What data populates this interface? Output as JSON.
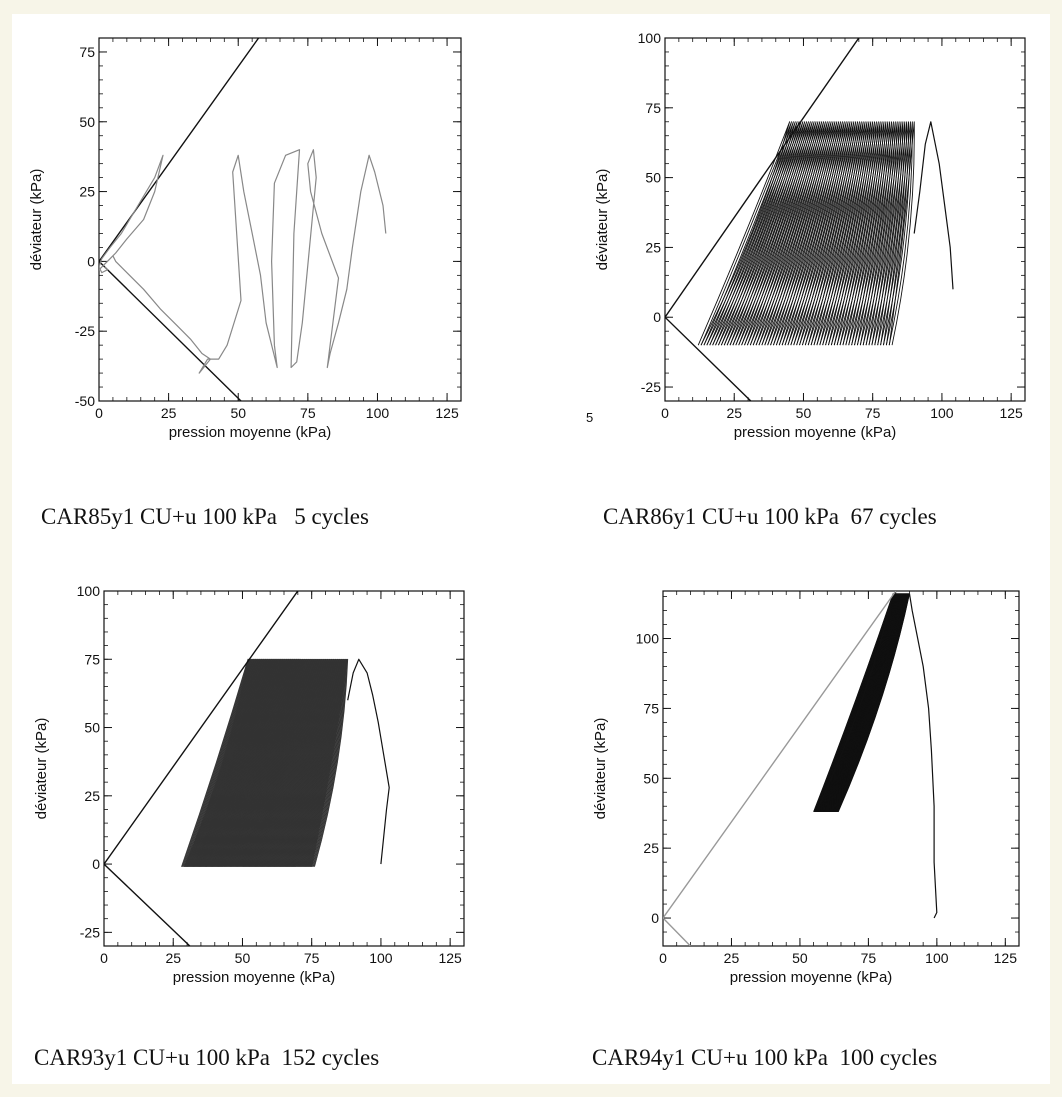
{
  "figure": {
    "stray_mark": "5",
    "background": "#f7f5e8"
  },
  "chart_data": [
    {
      "type": "line",
      "panel": "a",
      "caption": "CAR85y1 CU+u 100 kPa   5 cycles",
      "xlabel": "pression moyenne (kPa)",
      "ylabel": "déviateur (kPa)",
      "xlim": [
        0,
        130
      ],
      "ylim": [
        -50,
        80
      ],
      "xticks": [
        0,
        25,
        50,
        75,
        100,
        125
      ],
      "yticks": [
        -50,
        -25,
        0,
        25,
        50,
        75
      ],
      "series": [
        {
          "role": "failure-line",
          "color": "#111111",
          "x": [
            0,
            57.3
          ],
          "y": [
            0,
            80
          ]
        },
        {
          "role": "failure-line",
          "color": "#111111",
          "x": [
            0,
            51
          ],
          "y": [
            0,
            -50
          ]
        },
        {
          "role": "stress-path",
          "color": "#888888",
          "x": [
            103,
            102,
            99,
            97,
            94,
            91,
            89,
            86,
            83,
            82,
            86,
            80,
            76,
            75,
            77,
            78,
            73,
            71,
            69,
            70,
            72,
            67,
            63,
            62,
            63,
            64,
            60,
            58,
            55,
            52,
            50,
            48,
            51,
            46,
            43,
            39,
            36,
            40,
            37,
            33,
            28,
            22,
            16,
            10,
            6,
            5,
            3,
            1,
            0,
            2,
            6,
            10,
            16,
            20,
            23,
            20,
            14,
            8,
            4,
            1,
            0,
            1,
            3,
            2
          ],
          "y": [
            10,
            20,
            32,
            38,
            25,
            5,
            -10,
            -22,
            -33,
            -38,
            -6,
            10,
            25,
            35,
            40,
            30,
            -22,
            -36,
            -38,
            10,
            40,
            38,
            28,
            0,
            -30,
            -38,
            -22,
            -5,
            10,
            25,
            38,
            32,
            -14,
            -30,
            -35,
            -35,
            -40,
            -35,
            -33,
            -28,
            -23,
            -17,
            -10,
            -4,
            0,
            2,
            0,
            -2,
            -3,
            -1,
            3,
            8,
            15,
            25,
            38,
            30,
            20,
            10,
            5,
            1,
            -2,
            -4,
            -3,
            -2
          ]
        }
      ]
    },
    {
      "type": "line",
      "panel": "b",
      "caption": "CAR86y1 CU+u 100 kPa  67 cycles",
      "xlabel": "pression moyenne (kPa)",
      "ylabel": "déviateur (kPa)",
      "xlim": [
        0,
        130
      ],
      "ylim": [
        -30,
        100
      ],
      "xticks": [
        0,
        25,
        50,
        75,
        100,
        125
      ],
      "yticks": [
        -25,
        0,
        25,
        50,
        75,
        100
      ],
      "loops": {
        "count": 67,
        "q_max": 70,
        "q_min": -10,
        "p_start_top": 90,
        "p_end_top": 45,
        "p_start_bottom": 81,
        "p_end_bottom": 12,
        "color": "#111111"
      },
      "series": [
        {
          "role": "failure-line",
          "color": "#111111",
          "x": [
            0,
            70
          ],
          "y": [
            0,
            100
          ]
        },
        {
          "role": "failure-line",
          "color": "#111111",
          "x": [
            0,
            31
          ],
          "y": [
            0,
            -30
          ]
        },
        {
          "role": "first-loading",
          "color": "#111111",
          "x": [
            104,
            103,
            101,
            99,
            97,
            96,
            94,
            92,
            90
          ],
          "y": [
            10,
            25,
            40,
            55,
            65,
            70,
            62,
            45,
            30
          ]
        }
      ]
    },
    {
      "type": "line",
      "panel": "c",
      "caption": "CAR93y1 CU+u 100 kPa  152 cycles",
      "xlabel": "pression moyenne (kPa)",
      "ylabel": "déviateur (kPa)",
      "xlim": [
        0,
        130
      ],
      "ylim": [
        -30,
        100
      ],
      "xticks": [
        0,
        25,
        50,
        75,
        100,
        125
      ],
      "yticks": [
        -25,
        0,
        25,
        50,
        75,
        100
      ],
      "loops": {
        "count": 152,
        "q_max": 75,
        "q_min": -1,
        "p_start_top": 88,
        "p_end_top": 52,
        "p_start_bottom": 75,
        "p_end_bottom": 28,
        "color": "#333333"
      },
      "series": [
        {
          "role": "failure-line",
          "color": "#111111",
          "x": [
            0,
            70
          ],
          "y": [
            0,
            100
          ]
        },
        {
          "role": "failure-line",
          "color": "#111111",
          "x": [
            0,
            31
          ],
          "y": [
            0,
            -30
          ]
        },
        {
          "role": "first-loading",
          "color": "#111111",
          "x": [
            100,
            101,
            102,
            103,
            101,
            99,
            97,
            95,
            92,
            90,
            88
          ],
          "y": [
            0,
            10,
            20,
            28,
            40,
            52,
            62,
            70,
            75,
            70,
            60
          ]
        }
      ]
    },
    {
      "type": "line",
      "panel": "d",
      "caption": "CAR94y1 CU+u 100 kPa  100 cycles",
      "xlabel": "pression moyenne (kPa)",
      "ylabel": "déviateur (kPa)",
      "xlim": [
        0,
        130
      ],
      "ylim": [
        -10,
        117
      ],
      "xticks": [
        0,
        25,
        50,
        75,
        100,
        125
      ],
      "yticks": [
        0,
        25,
        50,
        75,
        100
      ],
      "loops": {
        "count": 100,
        "q_max": 116,
        "q_min": 38,
        "p_start_top": 90,
        "p_end_top": 84,
        "p_start_bottom": 63,
        "p_end_bottom": 55,
        "color": "#111111"
      },
      "series": [
        {
          "role": "failure-line",
          "color": "#999999",
          "x": [
            0,
            85
          ],
          "y": [
            0,
            117
          ]
        },
        {
          "role": "failure-line",
          "color": "#999999",
          "x": [
            0,
            10
          ],
          "y": [
            0,
            -10
          ]
        },
        {
          "role": "first-loading",
          "color": "#111111",
          "x": [
            99,
            100,
            99,
            99,
            98,
            97,
            95,
            93,
            91,
            90
          ],
          "y": [
            0,
            2,
            20,
            40,
            60,
            75,
            90,
            100,
            110,
            116
          ]
        }
      ]
    }
  ]
}
